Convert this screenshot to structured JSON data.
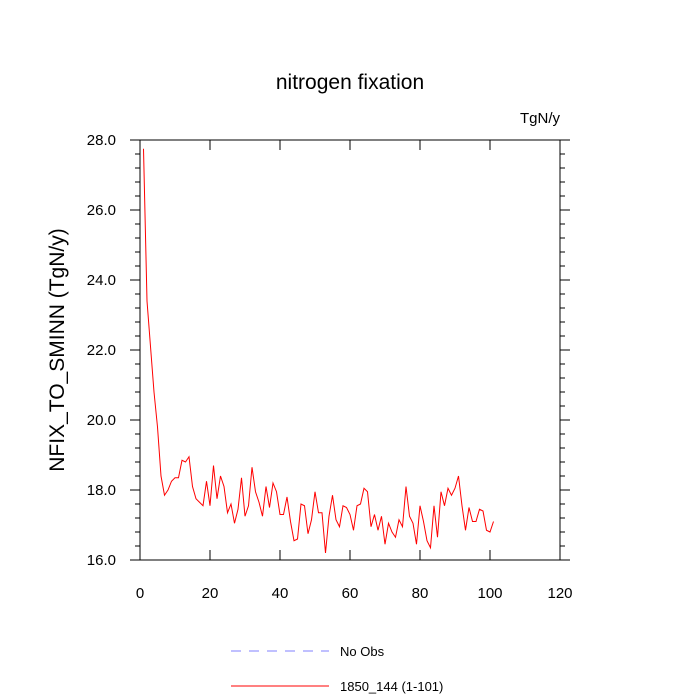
{
  "chart_data": {
    "type": "line",
    "title": "nitrogen fixation",
    "units_label": "TgN/y",
    "ylabel": "NFIX_TO_SMINN  (TgN/y)",
    "xlabel": "",
    "xlim": [
      0,
      120
    ],
    "ylim": [
      16,
      28
    ],
    "xticks": [
      0,
      20,
      40,
      60,
      80,
      100,
      120
    ],
    "xtick_labels": [
      "0",
      "20",
      "40",
      "60",
      "80",
      "100",
      "120"
    ],
    "yticks": [
      16,
      18,
      20,
      22,
      24,
      26,
      28
    ],
    "ytick_labels": [
      "16.0",
      "18.0",
      "20.0",
      "22.0",
      "24.0",
      "26.0",
      "28.0"
    ],
    "grid": false,
    "legend_position": "bottom-center",
    "series": [
      {
        "name": "No Obs",
        "color": "#8080ff",
        "dash": true,
        "x": [],
        "y": []
      },
      {
        "name": "1850_144 (1-101)",
        "color": "#ff0000",
        "dash": false,
        "x": [
          1,
          2,
          3,
          4,
          5,
          6,
          7,
          8,
          9,
          10,
          11,
          12,
          13,
          14,
          15,
          16,
          17,
          18,
          19,
          20,
          21,
          22,
          23,
          24,
          25,
          26,
          27,
          28,
          29,
          30,
          31,
          32,
          33,
          34,
          35,
          36,
          37,
          38,
          39,
          40,
          41,
          42,
          43,
          44,
          45,
          46,
          47,
          48,
          49,
          50,
          51,
          52,
          53,
          54,
          55,
          56,
          57,
          58,
          59,
          60,
          61,
          62,
          63,
          64,
          65,
          66,
          67,
          68,
          69,
          70,
          71,
          72,
          73,
          74,
          75,
          76,
          77,
          78,
          79,
          80,
          81,
          82,
          83,
          84,
          85,
          86,
          87,
          88,
          89,
          90,
          91,
          92,
          93,
          94,
          95,
          96,
          97,
          98,
          99,
          100,
          101
        ],
        "y": [
          27.75,
          23.4,
          22.1,
          20.8,
          19.8,
          18.4,
          17.85,
          18.0,
          18.25,
          18.35,
          18.35,
          18.85,
          18.8,
          18.95,
          18.1,
          17.75,
          17.65,
          17.55,
          18.25,
          17.55,
          18.7,
          17.75,
          18.4,
          18.1,
          17.35,
          17.6,
          17.05,
          17.45,
          18.35,
          17.25,
          17.55,
          18.65,
          17.95,
          17.65,
          17.25,
          18.1,
          17.5,
          18.2,
          17.95,
          17.3,
          17.3,
          17.8,
          17.1,
          16.55,
          16.6,
          17.6,
          17.55,
          16.75,
          17.15,
          17.95,
          17.35,
          17.35,
          16.2,
          17.25,
          17.85,
          17.15,
          16.95,
          17.55,
          17.5,
          17.3,
          16.85,
          17.55,
          17.6,
          18.05,
          17.95,
          16.95,
          17.3,
          16.85,
          17.25,
          16.45,
          17.05,
          16.8,
          16.65,
          17.15,
          16.95,
          18.1,
          17.25,
          17.05,
          16.45,
          17.55,
          17.1,
          16.55,
          16.35,
          17.55,
          16.65,
          17.95,
          17.55,
          18.05,
          17.85,
          18.05,
          18.4,
          17.55,
          16.85,
          17.5,
          17.1,
          17.1,
          17.45,
          17.4,
          16.85,
          16.8,
          17.1
        ]
      }
    ]
  }
}
